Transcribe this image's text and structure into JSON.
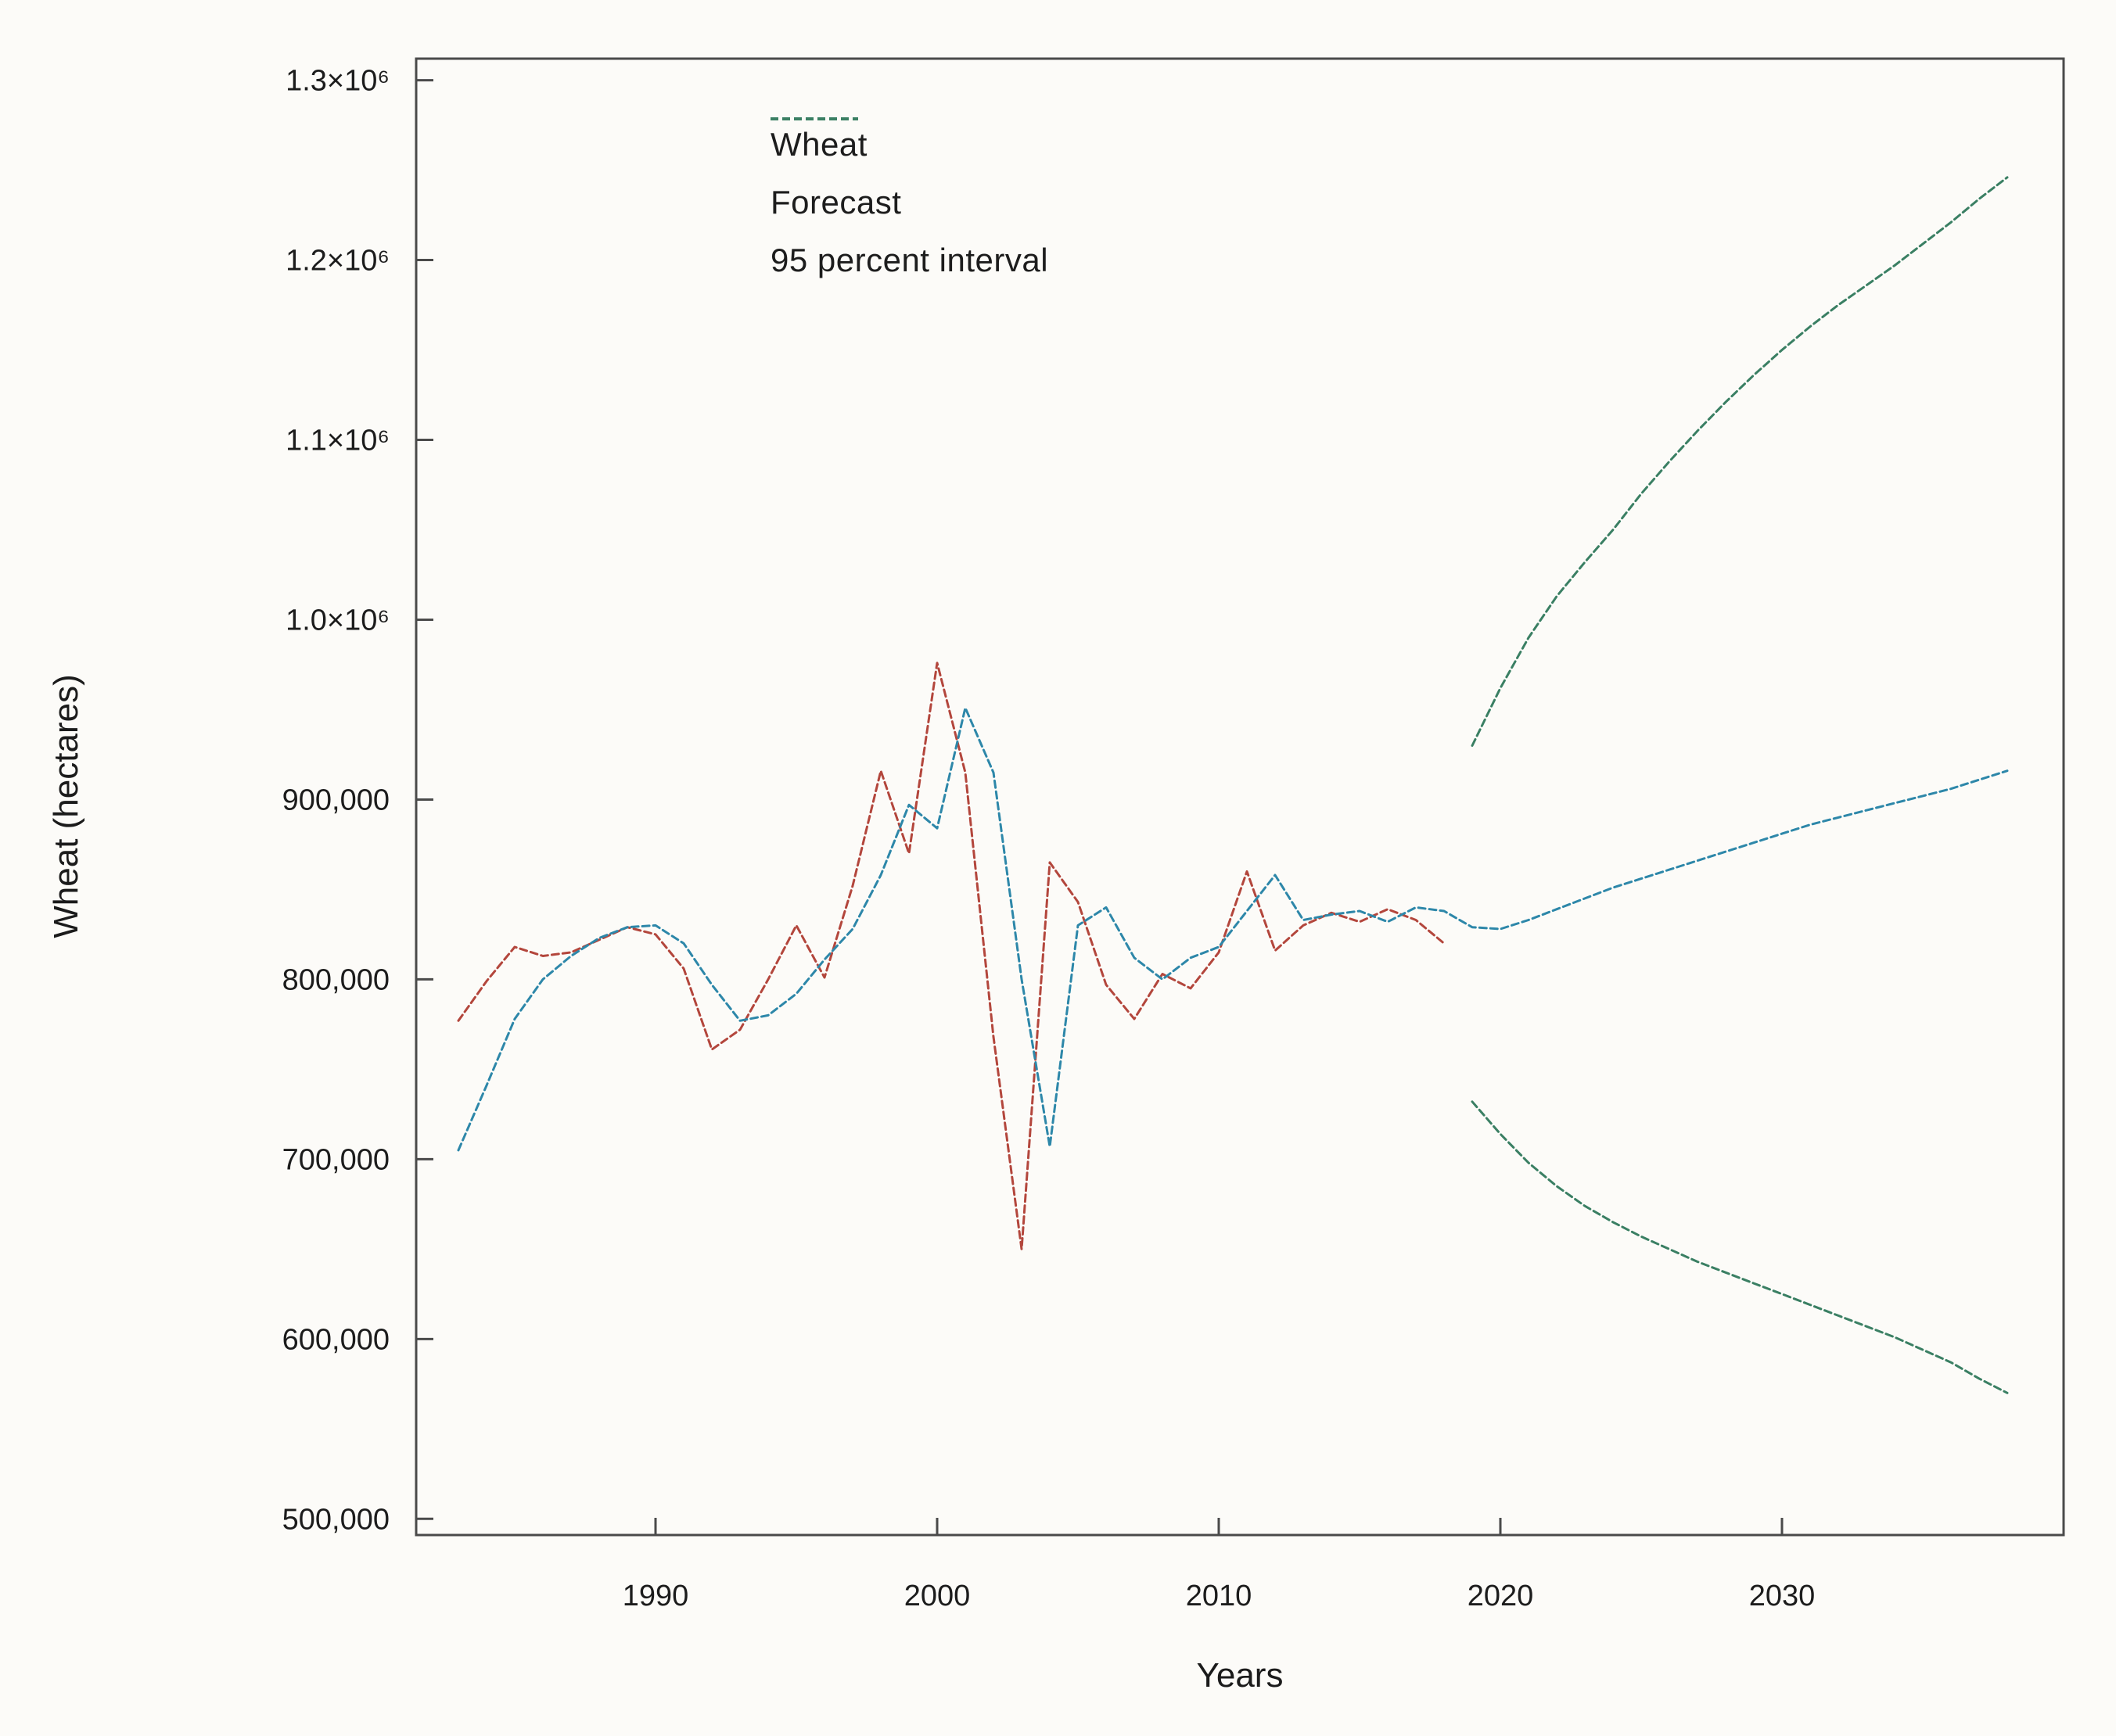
{
  "chart_data": {
    "type": "line",
    "title": "",
    "xlabel": "Years",
    "ylabel": "Wheat (hectares)",
    "x_ticks": [
      1990,
      2000,
      2010,
      2020,
      2030
    ],
    "y_ticks": [
      {
        "label": "500,000",
        "value": 500000
      },
      {
        "label": "600,000",
        "value": 600000
      },
      {
        "label": "700,000",
        "value": 700000
      },
      {
        "label": "800,000",
        "value": 800000
      },
      {
        "label": "900,000",
        "value": 900000
      },
      {
        "label": "1.0×10⁶",
        "value": 1000000
      },
      {
        "label": "1.1×10⁶",
        "value": 1100000
      },
      {
        "label": "1.2×10⁶",
        "value": 1200000
      },
      {
        "label": "1.3×10⁶",
        "value": 1300000
      }
    ],
    "xlim": [
      1981.5,
      2040
    ],
    "ylim": [
      491000,
      1312000
    ],
    "grid": false,
    "legend_position": "upper-left-inside",
    "legend": [
      {
        "label": "Wheat",
        "color": "#b3463c"
      },
      {
        "label": "Forecast",
        "color": "#2d87a9"
      },
      {
        "label": "95 percent interval",
        "color": "#3a7f63"
      }
    ],
    "series": [
      {
        "name": "Wheat",
        "color": "#b3463c",
        "x_start": 1983,
        "values": [
          777000,
          799000,
          818000,
          813000,
          815000,
          822000,
          829000,
          825000,
          806000,
          761000,
          772000,
          800000,
          830000,
          801000,
          852000,
          916000,
          870000,
          976000,
          915000,
          768000,
          650000,
          865000,
          843000,
          797000,
          778000,
          803000,
          795000,
          815000,
          860000,
          816000,
          830000,
          837000,
          832000,
          839000,
          833000,
          820000
        ]
      },
      {
        "name": "Forecast",
        "color": "#2d87a9",
        "x_start": 1983,
        "values": [
          705000,
          741000,
          778000,
          800000,
          813000,
          823000,
          829000,
          830000,
          820000,
          797000,
          777000,
          780000,
          792000,
          811000,
          828000,
          858000,
          897000,
          884000,
          951000,
          915000,
          800000,
          707000,
          830000,
          840000,
          812000,
          800000,
          812000,
          818000,
          838000,
          858000,
          833000,
          836000,
          838000,
          832000,
          840000,
          838000,
          829000,
          828000,
          833000,
          839000,
          845000,
          851000,
          856000,
          861000,
          866000,
          871000,
          876000,
          881000,
          886000,
          890000,
          894000,
          898000,
          902000,
          906000,
          911000,
          916000
        ]
      },
      {
        "name": "95 percent interval upper",
        "color": "#3a7f63",
        "x_start": 2019,
        "values": [
          930000,
          962000,
          990000,
          1013000,
          1032000,
          1050000,
          1070000,
          1088000,
          1105000,
          1121000,
          1136000,
          1150000,
          1163000,
          1175000,
          1186000,
          1197000,
          1209000,
          1221000,
          1234000,
          1246000
        ]
      },
      {
        "name": "95 percent interval lower",
        "color": "#3a7f63",
        "x_start": 2019,
        "values": [
          732000,
          714000,
          698000,
          685000,
          674000,
          665000,
          657000,
          650000,
          643000,
          637000,
          631000,
          625000,
          619000,
          613000,
          607000,
          601000,
          594000,
          587000,
          578000,
          570000
        ]
      }
    ]
  }
}
